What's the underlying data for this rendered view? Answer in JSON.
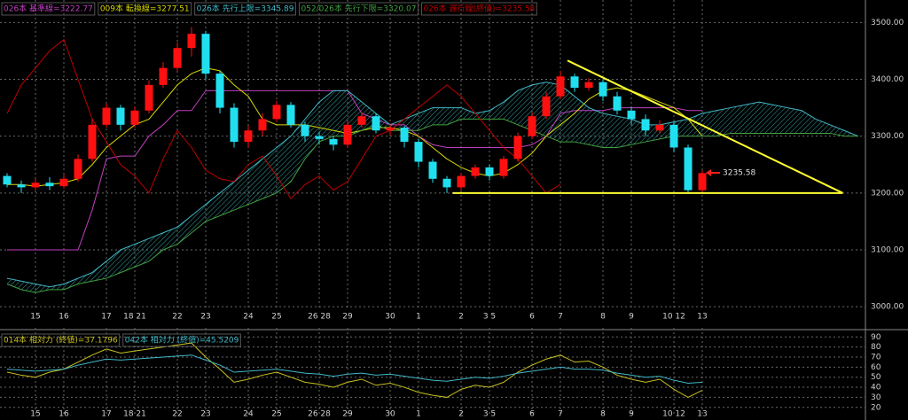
{
  "chart_data": [
    {
      "type": "candlestick",
      "categories": [
        null,
        null,
        "15",
        null,
        "16",
        null,
        null,
        "17",
        null,
        "18 21",
        null,
        null,
        "22",
        null,
        "23",
        null,
        null,
        "24",
        null,
        "25",
        null,
        null,
        "26 28",
        null,
        "29",
        null,
        null,
        "30",
        null,
        "1",
        null,
        null,
        "2",
        null,
        "3 5",
        null,
        null,
        "6",
        null,
        "7",
        null,
        null,
        "8",
        null,
        "9",
        null,
        null,
        "10 12",
        null,
        "13",
        null,
        null,
        null,
        null,
        null,
        null,
        null,
        null,
        null,
        null,
        null
      ],
      "open": [
        3230,
        3215,
        3210,
        3218,
        3212,
        3225,
        3260,
        3320,
        3350,
        3320,
        3345,
        3390,
        3420,
        3455,
        3480,
        3410,
        3350,
        3290,
        3310,
        3330,
        3355,
        3320,
        3300,
        3295,
        3285,
        3320,
        3335,
        3310,
        3315,
        3290,
        3255,
        3225,
        3210,
        3230,
        3245,
        3230,
        3260,
        3300,
        3335,
        3370,
        3405,
        3385,
        3395,
        3370,
        3345,
        3330,
        3310,
        3320,
        3280,
        3205,
        null,
        null,
        null,
        null,
        null,
        null,
        null,
        null,
        null,
        null,
        null
      ],
      "high": [
        3235,
        3222,
        3225,
        3228,
        3232,
        3268,
        3330,
        3358,
        3355,
        3352,
        3398,
        3430,
        3465,
        3492,
        3485,
        3415,
        3358,
        3318,
        3340,
        3362,
        3360,
        3325,
        3308,
        3300,
        3328,
        3342,
        3340,
        3322,
        3318,
        3295,
        3260,
        3230,
        3235,
        3250,
        3250,
        3265,
        3306,
        3342,
        3378,
        3415,
        3410,
        3402,
        3400,
        3378,
        3352,
        3338,
        3328,
        3325,
        3285,
        3240,
        null,
        null,
        null,
        null,
        null,
        null,
        null,
        null,
        null,
        null,
        null
      ],
      "low": [
        3210,
        3200,
        3205,
        3205,
        3208,
        3220,
        3255,
        3315,
        3310,
        3315,
        3340,
        3385,
        3415,
        3440,
        3400,
        3340,
        3280,
        3280,
        3300,
        3325,
        3315,
        3290,
        3285,
        3275,
        3280,
        3315,
        3305,
        3300,
        3280,
        3245,
        3218,
        3200,
        3205,
        3225,
        3222,
        3225,
        3255,
        3295,
        3330,
        3365,
        3378,
        3380,
        3362,
        3338,
        3320,
        3300,
        3305,
        3272,
        3200,
        3200,
        null,
        null,
        null,
        null,
        null,
        null,
        null,
        null,
        null,
        null,
        null
      ],
      "close": [
        3215,
        3210,
        3218,
        3212,
        3225,
        3260,
        3320,
        3350,
        3320,
        3345,
        3390,
        3420,
        3455,
        3480,
        3410,
        3350,
        3290,
        3310,
        3330,
        3355,
        3320,
        3300,
        3295,
        3285,
        3320,
        3335,
        3310,
        3315,
        3290,
        3255,
        3225,
        3210,
        3230,
        3245,
        3230,
        3260,
        3300,
        3335,
        3370,
        3405,
        3385,
        3395,
        3370,
        3345,
        3330,
        3310,
        3320,
        3280,
        3205,
        3235,
        null,
        null,
        null,
        null,
        null,
        null,
        null,
        null,
        null,
        null,
        null
      ],
      "up_color": "#ff1010",
      "down_color": "#20e0f0",
      "series": [
        {
          "name": "026本 基準線=3222.77",
          "color": "#c040c0",
          "values": [
            3100,
            3100,
            3100,
            3100,
            3100,
            3100,
            3170,
            3260,
            3265,
            3265,
            3300,
            3320,
            3345,
            3345,
            3380,
            3380,
            3380,
            3380,
            3380,
            3380,
            3380,
            3380,
            3380,
            3380,
            3380,
            3340,
            3330,
            3320,
            3320,
            3300,
            3285,
            3280,
            3280,
            3280,
            3280,
            3280,
            3280,
            3285,
            3300,
            3340,
            3345,
            3345,
            3345,
            3350,
            3350,
            3350,
            3350,
            3350,
            3345,
            3345,
            null,
            null,
            null,
            null,
            null,
            null,
            null,
            null,
            null,
            null,
            null
          ]
        },
        {
          "name": "009本 転換線=3277.51",
          "color": "#d8d800",
          "values": [
            3215,
            3215,
            3212,
            3215,
            3218,
            3225,
            3250,
            3280,
            3300,
            3320,
            3330,
            3360,
            3390,
            3410,
            3420,
            3415,
            3390,
            3370,
            3330,
            3320,
            3320,
            3320,
            3315,
            3310,
            3305,
            3310,
            3315,
            3315,
            3310,
            3300,
            3280,
            3260,
            3245,
            3235,
            3230,
            3235,
            3250,
            3270,
            3300,
            3320,
            3340,
            3365,
            3380,
            3385,
            3380,
            3370,
            3360,
            3350,
            3330,
            3300,
            null,
            null,
            null,
            null,
            null,
            null,
            null,
            null,
            null,
            null,
            null
          ]
        },
        {
          "name": "026本 先行上限=3345.89",
          "color": "#40b8c8",
          "values": [
            3050,
            3045,
            3040,
            3035,
            3040,
            3050,
            3060,
            3080,
            3100,
            3110,
            3120,
            3130,
            3140,
            3160,
            3180,
            3200,
            3220,
            3240,
            3260,
            3280,
            3300,
            3330,
            3360,
            3380,
            3380,
            3360,
            3340,
            3320,
            3330,
            3340,
            3350,
            3350,
            3350,
            3340,
            3345,
            3360,
            3380,
            3390,
            3395,
            3390,
            3370,
            3350,
            3340,
            3335,
            3330,
            3320,
            3320,
            3325,
            3330,
            3340,
            3345,
            3350,
            3355,
            3360,
            3355,
            3350,
            3345,
            3330,
            3320,
            3310,
            3300
          ]
        },
        {
          "name": "052/026本 先行下限=3320.07",
          "color": "#40a040",
          "values": [
            3040,
            3030,
            3025,
            3030,
            3030,
            3040,
            3045,
            3050,
            3060,
            3070,
            3080,
            3100,
            3110,
            3130,
            3150,
            3160,
            3170,
            3180,
            3190,
            3200,
            3220,
            3260,
            3290,
            3300,
            3300,
            3310,
            3320,
            3310,
            3310,
            3310,
            3320,
            3320,
            3330,
            3330,
            3330,
            3330,
            3320,
            3310,
            3300,
            3290,
            3290,
            3285,
            3280,
            3280,
            3285,
            3290,
            3295,
            3300,
            3300,
            3300,
            3300,
            3305,
            3305,
            3305,
            3305,
            3305,
            3305,
            3305,
            3305,
            3300,
            3300
          ]
        },
        {
          "name": "026本 遅行線(終値)=3235.58",
          "color": "#c00000",
          "values": [
            3340,
            3390,
            3420,
            3450,
            3470,
            3400,
            3330,
            3290,
            3250,
            3230,
            3200,
            3260,
            3310,
            3280,
            3240,
            3225,
            3220,
            3250,
            3265,
            3230,
            3190,
            3215,
            3230,
            3205,
            3220,
            3260,
            3300,
            3310,
            3330,
            3350,
            3370,
            3390,
            3370,
            3340,
            3310,
            3280,
            3260,
            3230,
            3200,
            3215,
            null,
            null,
            null,
            null,
            null,
            null,
            null,
            null,
            null,
            null,
            null,
            null,
            null,
            null,
            null,
            null,
            null,
            null,
            null,
            null,
            null
          ]
        }
      ],
      "cloud_color": "#40c8c8",
      "ylim": [
        2994,
        3527
      ],
      "yticks": [
        {
          "value": 3000,
          "label": "3000.00"
        },
        {
          "value": 3100,
          "label": "3100.00"
        },
        {
          "value": 3200,
          "label": "3200.00"
        },
        {
          "value": 3300,
          "label": "3300.00"
        },
        {
          "value": 3400,
          "label": "3400.00"
        },
        {
          "value": 3500,
          "label": "3500.00"
        }
      ],
      "grid": true,
      "trendlines": [
        {
          "x": [
            39.5,
            58.9
          ],
          "y": [
            3433,
            3200
          ],
          "color": "#ffff30"
        },
        {
          "x": [
            31.4,
            58.9
          ],
          "y": [
            3200,
            3200
          ],
          "color": "#ffff30"
        }
      ],
      "annotations": [
        {
          "text": "3235.58",
          "value": 3235.58,
          "color": "#ff2020"
        }
      ]
    },
    {
      "type": "line",
      "categories": [
        null,
        null,
        "15",
        null,
        "16",
        null,
        null,
        "17",
        null,
        "18 21",
        null,
        null,
        "22",
        null,
        "23",
        null,
        null,
        "24",
        null,
        "25",
        null,
        null,
        "26 28",
        null,
        "29",
        null,
        null,
        "30",
        null,
        "1",
        null,
        null,
        "2",
        null,
        "3 5",
        null,
        null,
        "6",
        null,
        "7",
        null,
        null,
        "8",
        null,
        "9",
        null,
        null,
        "10 12",
        null,
        "13",
        null,
        null,
        null,
        null,
        null,
        null,
        null,
        null,
        null,
        null,
        null
      ],
      "series": [
        {
          "name": "014本 相対力 (終値)=37.1796",
          "color": "#c8c020",
          "values": [
            55,
            52,
            50,
            55,
            58,
            65,
            72,
            78,
            74,
            76,
            78,
            80,
            82,
            84,
            70,
            58,
            45,
            48,
            52,
            55,
            50,
            45,
            43,
            40,
            45,
            48,
            42,
            44,
            40,
            35,
            32,
            30,
            38,
            42,
            40,
            45,
            55,
            62,
            68,
            72,
            65,
            66,
            60,
            52,
            48,
            45,
            48,
            38,
            30,
            37,
            null,
            null,
            null,
            null,
            null,
            null,
            null,
            null,
            null,
            null,
            null
          ]
        },
        {
          "name": "042本 相対力 (終値)=45.5209",
          "color": "#40b8c8",
          "values": [
            58,
            57,
            56,
            57,
            58,
            62,
            65,
            68,
            67,
            68,
            69,
            70,
            71,
            72,
            67,
            62,
            55,
            56,
            57,
            58,
            56,
            54,
            53,
            51,
            53,
            54,
            52,
            53,
            51,
            49,
            47,
            46,
            48,
            50,
            49,
            51,
            54,
            56,
            58,
            60,
            58,
            58,
            57,
            54,
            52,
            50,
            51,
            47,
            44,
            45,
            null,
            null,
            null,
            null,
            null,
            null,
            null,
            null,
            null,
            null,
            null
          ]
        }
      ],
      "ylim": [
        11,
        92
      ],
      "yticks": [
        20,
        30,
        40,
        50,
        60,
        70,
        80,
        90
      ],
      "grid": true
    }
  ]
}
